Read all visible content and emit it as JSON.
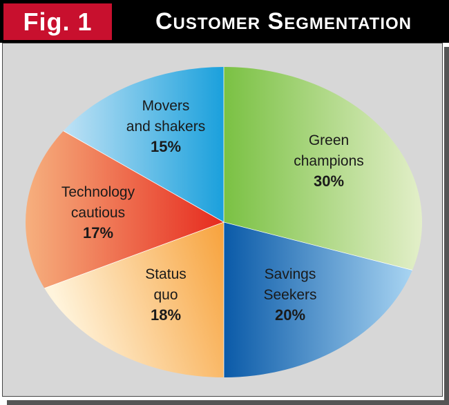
{
  "header": {
    "fig_label": "Fig. 1",
    "title": "Customer Segmentation",
    "badge_color": "#c8102e",
    "bar_color": "#000000"
  },
  "chart_data": {
    "type": "pie",
    "title": "Customer Segmentation",
    "slices": [
      {
        "label_lines": [
          "Green",
          "champions"
        ],
        "percent_text": "30%",
        "value": 30,
        "color_from": "#7ac143",
        "color_to": "#e3efc9"
      },
      {
        "label_lines": [
          "Savings",
          "Seekers"
        ],
        "percent_text": "20%",
        "value": 20,
        "color_from": "#0a5aa8",
        "color_to": "#a8d4f2"
      },
      {
        "label_lines": [
          "Status",
          "quo"
        ],
        "percent_text": "18%",
        "value": 18,
        "color_from": "#f7a23c",
        "color_to": "#fff4dc"
      },
      {
        "label_lines": [
          "Technology",
          "cautious"
        ],
        "percent_text": "17%",
        "value": 17,
        "color_from": "#e62a1e",
        "color_to": "#f6b07e"
      },
      {
        "label_lines": [
          "Movers",
          "and shakers"
        ],
        "percent_text": "15%",
        "value": 15,
        "color_from": "#1aa0dc",
        "color_to": "#bfe2f5"
      }
    ]
  }
}
